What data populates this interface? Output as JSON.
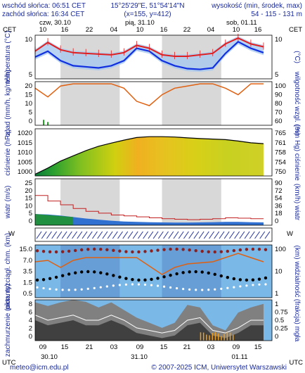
{
  "header": {
    "sunrise": "wschód słońca: 06:51 CET",
    "sunset": "zachód słońca: 16:34 CET",
    "coords": "15°25'29\"E, 51°54'14\"N",
    "grid": "(x=155, y=412)",
    "height_title": "wysokość (min, środek, max)",
    "height_values": "54 - 115 - 131 m"
  },
  "timezone_left": "CET",
  "timezone_right": "CET",
  "timezone_bottom_left": "UTC",
  "timezone_bottom_right": "UTC",
  "days_top": [
    "czw, 30.10",
    "pią, 31.10",
    "sob, 01.11"
  ],
  "hours_top": [
    "10",
    "16",
    "22",
    "04",
    "10",
    "16",
    "22",
    "04",
    "10",
    "16"
  ],
  "days_bottom": [
    "30.10",
    "31.10",
    "01.11"
  ],
  "hours_bottom": [
    "09",
    "15",
    "21",
    "03",
    "09",
    "15",
    "21",
    "03",
    "09",
    "15"
  ],
  "footer": {
    "email": "meteo@icm.edu.pl",
    "copyright": "© 2007-2025 ICM, Uniwersytet Warszawski"
  },
  "colors": {
    "red": "#e02020",
    "blue": "#1030e0",
    "ink": "#1a2a9a",
    "orange": "#e06010"
  },
  "chart_data": [
    {
      "type": "line",
      "panel": "temperature",
      "ylabel_left": "temperatura (°C)",
      "ylabel_right": "(°C)",
      "y_ticks": [
        "10",
        "5"
      ],
      "y_ticks_right": [
        "10",
        "5"
      ],
      "ylim": [
        2,
        14
      ],
      "x": [
        0,
        3,
        6,
        9,
        12,
        15,
        18,
        21,
        24,
        27,
        30,
        33,
        36,
        39,
        42,
        45,
        48,
        51,
        54
      ],
      "series": [
        {
          "values": [
            9.6,
            12.0,
            10.0,
            9.2,
            9.0,
            8.8,
            8.6,
            9.2,
            11.2,
            10.4,
            8.6,
            8.2,
            8.2,
            8.6,
            9.0,
            11.6,
            13.2,
            11.6,
            10.8
          ]
        },
        {
          "values": [
            8.0,
            9.6,
            7.0,
            5.6,
            5.3,
            5.0,
            5.6,
            7.0,
            10.4,
            9.6,
            7.0,
            5.6,
            4.8,
            4.6,
            5.0,
            9.0,
            12.2,
            10.4,
            9.2
          ]
        }
      ]
    },
    {
      "type": "line",
      "panel": "precipitation",
      "ylabel_left": "opad (mm/h, kg/m²/h)",
      "ylabel_right": "wilgotność wzgl. (%)",
      "y_ticks": [
        "20",
        "15",
        "10",
        "5",
        "0"
      ],
      "y_ticks_right": [
        "100",
        "90",
        "80",
        "70",
        "60"
      ],
      "ylim": [
        0,
        20
      ],
      "x": [
        0,
        3,
        6,
        9,
        12,
        15,
        18,
        21,
        24,
        27,
        30,
        33,
        36,
        39,
        42,
        45,
        48,
        51,
        54
      ],
      "series": [
        {
          "values": [
            17,
            13,
            18,
            19,
            19,
            19,
            19,
            17,
            11,
            9,
            14,
            17,
            18,
            19,
            19,
            17,
            14,
            19,
            19
          ]
        }
      ]
    },
    {
      "type": "area",
      "panel": "pressure",
      "ylabel_left": "ciśnienie (hPa)",
      "ylabel_right": "(mm Hg) ciśnienie",
      "y_ticks": [
        "1020",
        "1015",
        "1010",
        "1005",
        "1000"
      ],
      "y_ticks_right": [
        "765",
        "761",
        "758",
        "754",
        "750"
      ],
      "ylim": [
        995,
        1022
      ],
      "x": [
        0,
        3,
        6,
        9,
        12,
        15,
        18,
        21,
        24,
        27,
        30,
        33,
        36,
        39,
        42,
        45,
        48,
        51,
        54
      ],
      "series": [
        {
          "values": [
            996,
            999.5,
            1003.5,
            1006.5,
            1009.5,
            1012,
            1013.8,
            1015.5,
            1017,
            1017.5,
            1017.5,
            1017.3,
            1016.8,
            1016.4,
            1016.1,
            1015.8,
            1015,
            1014,
            1013.5
          ]
        }
      ]
    },
    {
      "type": "line",
      "panel": "wind",
      "ylabel_left": "wiatr (m/s)",
      "ylabel_right": "(km/h) wiatr",
      "y_ticks": [
        "25",
        "20",
        "15",
        "10",
        "5",
        "0"
      ],
      "y_ticks_right": [
        "90",
        "72",
        "54",
        "36",
        "18",
        "0"
      ],
      "ylim": [
        0,
        25
      ],
      "x": [
        0,
        3,
        6,
        9,
        12,
        15,
        18,
        21,
        24,
        27,
        30,
        33,
        36,
        39,
        42,
        45,
        48,
        51,
        54
      ],
      "series": [
        {
          "values": [
            16,
            13,
            11,
            9,
            7.5,
            6.5,
            5.5,
            5,
            4.5,
            4,
            3.5,
            3.2,
            3,
            3.2,
            3.5,
            4,
            3.8,
            3.5,
            3.5
          ]
        },
        {
          "values": [
            6,
            5.8,
            5.2,
            4.4,
            3.6,
            3.0,
            2.4,
            2.0,
            1.8,
            1.6,
            1.5,
            1.4,
            1.4,
            1.5,
            1.6,
            1.8,
            1.8,
            1.6,
            1.5
          ]
        }
      ]
    },
    {
      "type": "scatter",
      "panel": "visibility",
      "ylabel_left": "pion. rozciągł. chm. (km)",
      "ylabel_right": "(km) widzialność",
      "y_ticks": [
        "15.0",
        "7.0",
        "3.5",
        "1.5",
        "0.5"
      ],
      "y_ticks_right": [
        "100",
        "10",
        "1"
      ],
      "ylim": [
        0,
        15
      ]
    },
    {
      "type": "area",
      "panel": "cloudiness",
      "ylabel_left": "zachmurzenie (oktanty)",
      "ylabel_right": "(frakcja) mgła",
      "y_ticks": [
        "8",
        "6",
        "4",
        "2",
        "0"
      ],
      "y_ticks_right": [
        "1",
        "0.75",
        "0.5",
        "0.25",
        "0"
      ],
      "ylim": [
        0,
        8
      ],
      "x": [
        0,
        3,
        6,
        9,
        12,
        15,
        18,
        21,
        24,
        27,
        30,
        33,
        36,
        39,
        42,
        45,
        48,
        51,
        54
      ],
      "series": [
        {
          "values": [
            7.5,
            6.8,
            7.5,
            8,
            7.6,
            6.5,
            7.5,
            6,
            4.5,
            3.5,
            2.5,
            3.5,
            7,
            6.5,
            3,
            2,
            5.5,
            6.5,
            7.2
          ]
        },
        {
          "values": [
            4,
            3,
            3.5,
            4,
            3,
            3,
            4,
            3,
            1.5,
            1,
            0.5,
            1,
            3,
            3.5,
            1,
            0.5,
            1.5,
            3,
            3
          ]
        }
      ]
    }
  ]
}
